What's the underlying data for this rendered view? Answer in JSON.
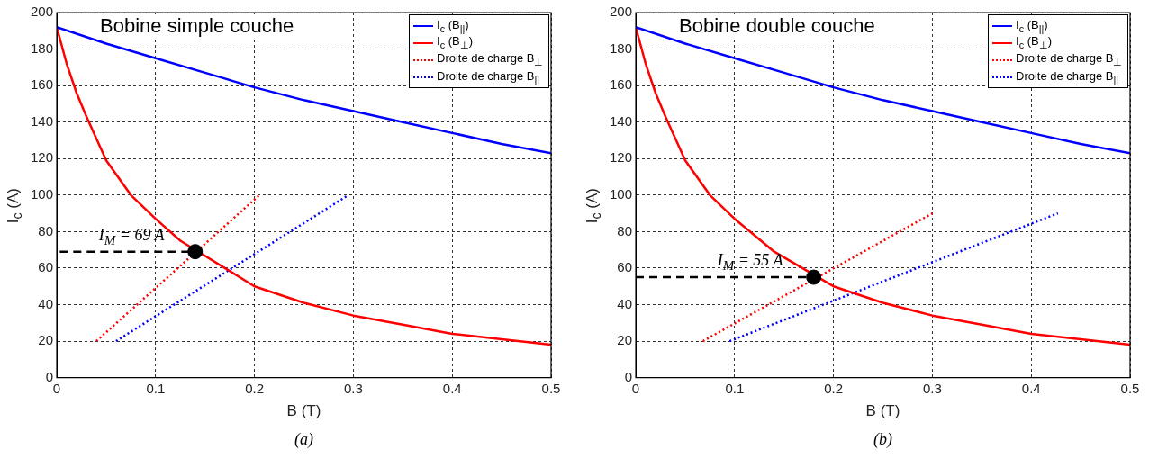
{
  "chart_data": [
    {
      "type": "line",
      "title": "Bobine simple couche",
      "xlabel": "B (T)",
      "ylabel": "I$_{c}$ (A)",
      "xlim": [
        0,
        0.5
      ],
      "ylim": [
        0,
        200
      ],
      "xticks": [
        0,
        0.1,
        0.2,
        0.3,
        0.4,
        0.5
      ],
      "yticks": [
        0,
        20,
        40,
        60,
        80,
        100,
        120,
        140,
        160,
        180,
        200
      ],
      "grid": true,
      "legend": "top right",
      "marker": "none",
      "annotations": [
        {
          "text": "I$_{M}$ = 69 A",
          "x": 0.14,
          "y": 69
        },
        "(a)"
      ],
      "series": [
        {
          "name": "I$_{c}$ (B$_{||}$)",
          "color": "#0000ff",
          "line_style": "solid",
          "x": [
            0,
            0.05,
            0.1,
            0.15,
            0.2,
            0.25,
            0.3,
            0.35,
            0.4,
            0.45,
            0.5
          ],
          "values": [
            192,
            183,
            175,
            167,
            159,
            152,
            146,
            140,
            134,
            128,
            123
          ]
        },
        {
          "name": "I$_{c}$ (B$_{⊥}$)",
          "color": "#ff0000",
          "line_style": "solid",
          "x": [
            0,
            0.01,
            0.02,
            0.03,
            0.05,
            0.075,
            0.1,
            0.125,
            0.2,
            0.25,
            0.3,
            0.35,
            0.4,
            0.45,
            0.5
          ],
          "values": [
            192,
            172,
            156,
            143,
            119,
            100,
            87,
            75,
            50,
            41,
            34,
            29,
            24,
            21,
            18
          ]
        },
        {
          "name": "Droite de charge B$_{⊥}$",
          "color": "#ff0000",
          "line_style": "dotted",
          "x": [
            0.04,
            0.205
          ],
          "values": [
            20,
            100
          ]
        },
        {
          "name": "Droite de charge B$_{||}$",
          "color": "#0000ff",
          "line_style": "dotted",
          "x": [
            0.06,
            0.295
          ],
          "values": [
            20,
            100
          ]
        },
        {
          "color": "#000000",
          "line_style": "dashed",
          "x": [
            0.003,
            0.14
          ],
          "values": [
            69,
            69
          ]
        },
        {
          "type": "scatter",
          "marker": "circle",
          "color": "#000000",
          "x": [
            0.14
          ],
          "values": [
            69
          ]
        }
      ]
    },
    {
      "type": "line",
      "title": "Bobine double couche",
      "xlabel": "B (T)",
      "ylabel": "I$_{c}$ (A)",
      "xlim": [
        0,
        0.5
      ],
      "ylim": [
        0,
        200
      ],
      "xticks": [
        0,
        0.1,
        0.2,
        0.3,
        0.4,
        0.5
      ],
      "yticks": [
        0,
        20,
        40,
        60,
        80,
        100,
        120,
        140,
        160,
        180,
        200
      ],
      "grid": true,
      "legend": "top right",
      "marker": "none",
      "annotations": [
        {
          "text": "I$_{M}$ = 55 A",
          "x": 0.18,
          "y": 55
        },
        "(b)"
      ],
      "series": [
        {
          "name": "I$_{c}$ (B$_{||}$)",
          "color": "#0000ff",
          "line_style": "solid",
          "x": [
            0,
            0.05,
            0.1,
            0.15,
            0.2,
            0.25,
            0.3,
            0.35,
            0.4,
            0.45,
            0.5
          ],
          "values": [
            192,
            183,
            175,
            167,
            159,
            152,
            146,
            140,
            134,
            128,
            123
          ]
        },
        {
          "name": "I$_{c}$ (B$_{⊥}$)",
          "color": "#ff0000",
          "line_style": "solid",
          "x": [
            0,
            0.01,
            0.02,
            0.03,
            0.05,
            0.075,
            0.1,
            0.14,
            0.2,
            0.25,
            0.3,
            0.35,
            0.4,
            0.45,
            0.5
          ],
          "values": [
            192,
            172,
            156,
            143,
            119,
            100,
            87,
            69,
            50,
            41,
            34,
            29,
            24,
            21,
            18
          ]
        },
        {
          "name": "Droite de charge B$_{⊥}$",
          "color": "#ff0000",
          "line_style": "dotted",
          "x": [
            0.068,
            0.3
          ],
          "values": [
            20,
            90
          ]
        },
        {
          "name": "Droite de charge B$_{||}$",
          "color": "#0000ff",
          "line_style": "dotted",
          "x": [
            0.095,
            0.427
          ],
          "values": [
            20,
            90
          ]
        },
        {
          "color": "#000000",
          "line_style": "dashed",
          "x": [
            0,
            0.18
          ],
          "values": [
            55,
            55
          ]
        },
        {
          "type": "scatter",
          "marker": "circle",
          "color": "#000000",
          "x": [
            0.18
          ],
          "values": [
            55
          ]
        }
      ]
    }
  ]
}
